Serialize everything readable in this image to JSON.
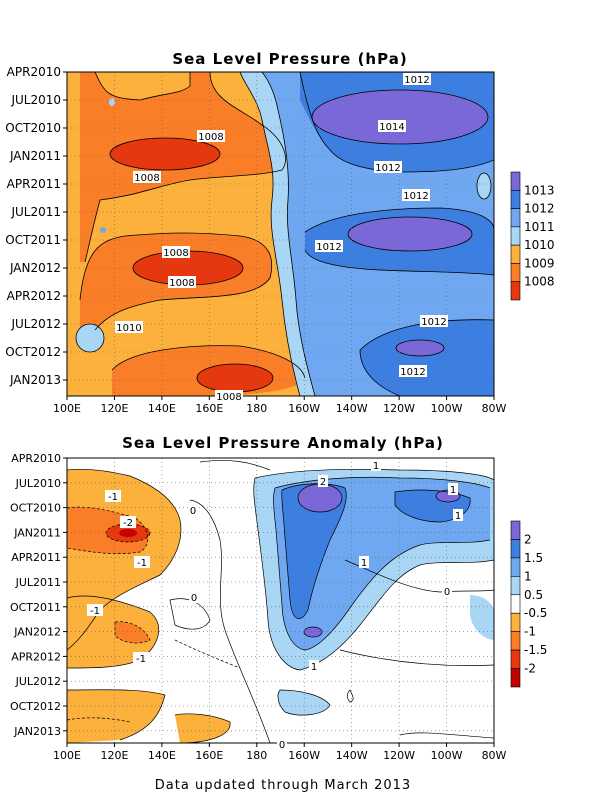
{
  "footer": "Data updated through March 2013",
  "chart_data": [
    {
      "type": "heatmap",
      "title": "Sea Level Pressure (hPa)",
      "x_ticks": [
        "100E",
        "120E",
        "140E",
        "160E",
        "180",
        "160W",
        "140W",
        "120W",
        "100W",
        "80W"
      ],
      "y_ticks": [
        "APR2010",
        "JUL2010",
        "OCT2010",
        "JAN2011",
        "APR2011",
        "JUL2011",
        "OCT2011",
        "JAN2012",
        "APR2012",
        "JUL2012",
        "OCT2012",
        "JAN2013"
      ],
      "xlim": [
        "100E",
        "80W"
      ],
      "ylim": [
        "MAR2010",
        "MAR2013"
      ],
      "colorbar": {
        "labels": [
          "1013",
          "1012",
          "1011",
          "1010",
          "1009",
          "1008"
        ],
        "colors": [
          "#7b68d8",
          "#3d7fe0",
          "#6fa8f0",
          "#a9d6f5",
          "#fbb13c",
          "#f97e27",
          "#e6370f"
        ]
      },
      "contour_labels": [
        "1012",
        "1014",
        "1008",
        "1008",
        "1012",
        "1012",
        "1012",
        "1008",
        "1008",
        "1010",
        "1012",
        "1012",
        "1008"
      ]
    },
    {
      "type": "heatmap",
      "title": "Sea Level Pressure Anomaly (hPa)",
      "x_ticks": [
        "100E",
        "120E",
        "140E",
        "160E",
        "180",
        "160W",
        "140W",
        "120W",
        "100W",
        "80W"
      ],
      "y_ticks": [
        "APR2010",
        "JUL2010",
        "OCT2010",
        "JAN2011",
        "APR2011",
        "JUL2011",
        "OCT2011",
        "JAN2012",
        "APR2012",
        "JUL2012",
        "OCT2012",
        "JAN2013"
      ],
      "xlim": [
        "100E",
        "80W"
      ],
      "ylim": [
        "MAR2010",
        "MAR2013"
      ],
      "colorbar": {
        "labels": [
          "2",
          "1.5",
          "1",
          "0.5",
          "-0.5",
          "-1",
          "-1.5",
          "-2"
        ],
        "colors": [
          "#7b68d8",
          "#3d7fe0",
          "#6fa8f0",
          "#a9d6f5",
          "#ffffff",
          "#fbb13c",
          "#f97e27",
          "#e6370f",
          "#c40000"
        ]
      },
      "contour_labels": [
        "1",
        "2",
        "1",
        "1",
        "-1",
        "0",
        "-2",
        "-1",
        "1",
        "0",
        "-1",
        "1",
        "-1",
        "0",
        "0"
      ]
    }
  ]
}
